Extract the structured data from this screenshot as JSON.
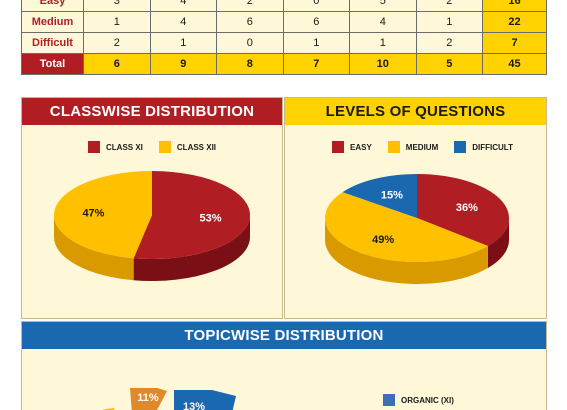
{
  "table": {
    "rows": [
      {
        "label": "Easy",
        "values": [
          "3",
          "4",
          "2",
          "0",
          "5",
          "2"
        ],
        "total": "16"
      },
      {
        "label": "Medium",
        "values": [
          "1",
          "4",
          "6",
          "6",
          "4",
          "1"
        ],
        "total": "22"
      },
      {
        "label": "Difficult",
        "values": [
          "2",
          "1",
          "0",
          "1",
          "1",
          "2"
        ],
        "total": "7"
      },
      {
        "label": "Total",
        "values": [
          "6",
          "9",
          "8",
          "7",
          "10",
          "5"
        ],
        "total": "45"
      }
    ]
  },
  "classwise": {
    "title": "CLASSWISE DISTRIBUTION",
    "legend": [
      {
        "label": "CLASS XI",
        "color": "#b01e24"
      },
      {
        "label": "CLASS XII",
        "color": "#ffc000"
      }
    ]
  },
  "levels": {
    "title": "LEVELS OF QUESTIONS",
    "legend": [
      {
        "label": "EASY",
        "color": "#b01e24"
      },
      {
        "label": "MEDIUM",
        "color": "#ffc000"
      },
      {
        "label": "DIFFICULT",
        "color": "#1a68b0"
      }
    ]
  },
  "topicwise": {
    "title": "TOPICWISE DISTRIBUTION",
    "legend": [
      {
        "label": "ORGANIC (XI)",
        "color": "#3f6db8"
      }
    ]
  },
  "chart_data": [
    {
      "type": "pie",
      "title": "CLASSWISE DISTRIBUTION",
      "slices": [
        {
          "label": "CLASS XI",
          "value": 53,
          "text": "53%",
          "color": "#b01e24",
          "side": "#7a1016",
          "text_color": "#ffffff"
        },
        {
          "label": "CLASS XII",
          "value": 47,
          "text": "47%",
          "color": "#ffc000",
          "side": "#d99a00",
          "text_color": "#1a1a1a"
        }
      ],
      "start_angle": -90,
      "legend_position": "top"
    },
    {
      "type": "pie",
      "title": "LEVELS OF QUESTIONS",
      "slices": [
        {
          "label": "EASY",
          "value": 36,
          "text": "36%",
          "color": "#b01e24",
          "side": "#7a1016",
          "text_color": "#ffffff"
        },
        {
          "label": "MEDIUM",
          "value": 49,
          "text": "49%",
          "color": "#ffc000",
          "side": "#d99a00",
          "text_color": "#1a1a1a"
        },
        {
          "label": "DIFFICULT",
          "value": 15,
          "text": "15%",
          "color": "#1a68b0",
          "side": "#0f4478",
          "text_color": "#ffffff"
        }
      ],
      "start_angle": -90,
      "legend_position": "top"
    },
    {
      "type": "pie",
      "title": "TOPICWISE DISTRIBUTION",
      "slices": [
        {
          "label": "",
          "value": 11,
          "text": "11%",
          "color": "#e0892a",
          "side": "#a55f18",
          "text_color": "#ffffff"
        },
        {
          "label": "",
          "value": 13,
          "text": "13%",
          "color": "#1a68b0",
          "side": "#0f4478",
          "text_color": "#ffffff"
        }
      ],
      "legend_position": "right"
    }
  ]
}
